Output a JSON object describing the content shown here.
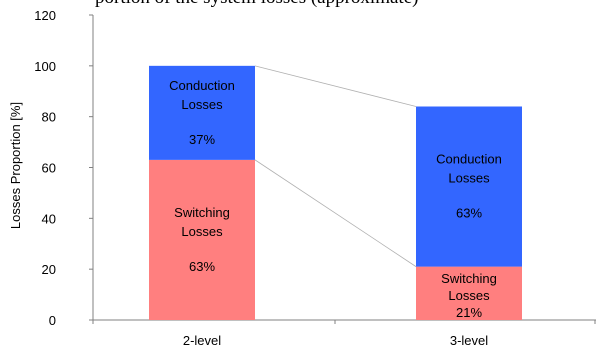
{
  "top_fragment": "portion of the system losses (approximate)",
  "chart_data": {
    "type": "bar",
    "stacked": true,
    "categories": [
      "2-level",
      "3-level"
    ],
    "ylabel": "Losses Proportion [%]",
    "ylim": [
      0,
      120
    ],
    "yticks": [
      0,
      20,
      40,
      60,
      80,
      100,
      120
    ],
    "grid": false,
    "legend": "none",
    "series": [
      {
        "key": "switching",
        "color": "#ff7f7f",
        "values": [
          63,
          21
        ],
        "labels": [
          [
            "Switching",
            "Losses",
            "63%"
          ],
          [
            "Switching",
            "Losses",
            "21%"
          ]
        ]
      },
      {
        "key": "conduction",
        "color": "#3366ff",
        "values": [
          37,
          63
        ],
        "labels": [
          [
            "Conduction",
            "Losses",
            "37%"
          ],
          [
            "Conduction",
            "Losses",
            "63%"
          ]
        ]
      }
    ]
  }
}
